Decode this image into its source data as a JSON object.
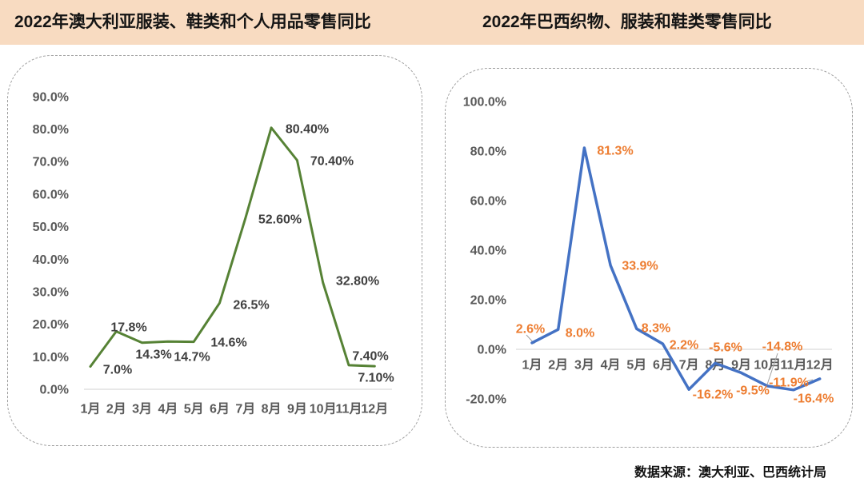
{
  "header": {
    "bg_color": "#F8DBC1",
    "left_title": "2022年澳大利亚服装、鞋类和个人用品零售同比",
    "right_title": "2022年巴西织物、服装和鞋类零售同比"
  },
  "source_note": "数据来源：澳大利亚、巴西统计局",
  "chart_data": [
    {
      "type": "line",
      "title": "2022年澳大利亚服装、鞋类和个人用品零售同比",
      "categories": [
        "1月",
        "2月",
        "3月",
        "4月",
        "5月",
        "6月",
        "7月",
        "8月",
        "9月",
        "10月",
        "11月",
        "12月"
      ],
      "values": [
        7.0,
        17.8,
        14.3,
        14.7,
        14.6,
        26.5,
        52.6,
        80.4,
        70.4,
        32.8,
        7.4,
        7.1
      ],
      "point_labels": [
        "7.0%",
        "17.8%",
        "14.3%",
        "14.7%",
        "14.6%",
        "26.5%",
        "52.60%",
        "80.40%",
        "70.40%",
        "32.80%",
        "7.40%",
        "7.10%"
      ],
      "y_ticks": [
        90,
        80,
        70,
        60,
        50,
        40,
        30,
        20,
        10,
        0
      ],
      "y_tick_labels": [
        "90.0%",
        "80.0%",
        "70.0%",
        "60.0%",
        "50.0%",
        "40.0%",
        "30.0%",
        "20.0%",
        "10.0%",
        "0.0%"
      ],
      "ylim": [
        0,
        90
      ],
      "xlabel": "",
      "ylabel": "",
      "grid": false,
      "legend": "none",
      "line_color": "#568235",
      "label_color": "#3f3f3f",
      "axis_text_color": "#595959",
      "axis_line_color": "#d9d9d9"
    },
    {
      "type": "line",
      "title": "2022年巴西织物、服装和鞋类零售同比",
      "categories": [
        "1月",
        "2月",
        "3月",
        "4月",
        "5月",
        "6月",
        "7月",
        "8月",
        "9月",
        "10月",
        "11月",
        "12月"
      ],
      "values": [
        2.6,
        8.0,
        81.3,
        33.9,
        8.3,
        2.2,
        -16.2,
        -5.6,
        -9.5,
        -14.8,
        -16.4,
        -11.9
      ],
      "point_labels": [
        "2.6%",
        "8.0%",
        "81.3%",
        "33.9%",
        "8.3%",
        "2.2%",
        "-16.2%",
        "-5.6%",
        "-9.5%",
        "-14.8%",
        "-16.4%",
        "-11.9%"
      ],
      "y_ticks": [
        100,
        80,
        60,
        40,
        20,
        0,
        -20
      ],
      "y_tick_labels": [
        "100.0%",
        "80.0%",
        "60.0%",
        "40.0%",
        "20.0%",
        "0.0%",
        "-20.0%"
      ],
      "ylim": [
        -20,
        100
      ],
      "xlabel": "",
      "ylabel": "",
      "grid": false,
      "legend": "none",
      "line_color": "#4472C4",
      "label_color": "#ED7D31",
      "axis_text_color": "#595959",
      "axis_line_color": "#d9d9d9"
    }
  ]
}
